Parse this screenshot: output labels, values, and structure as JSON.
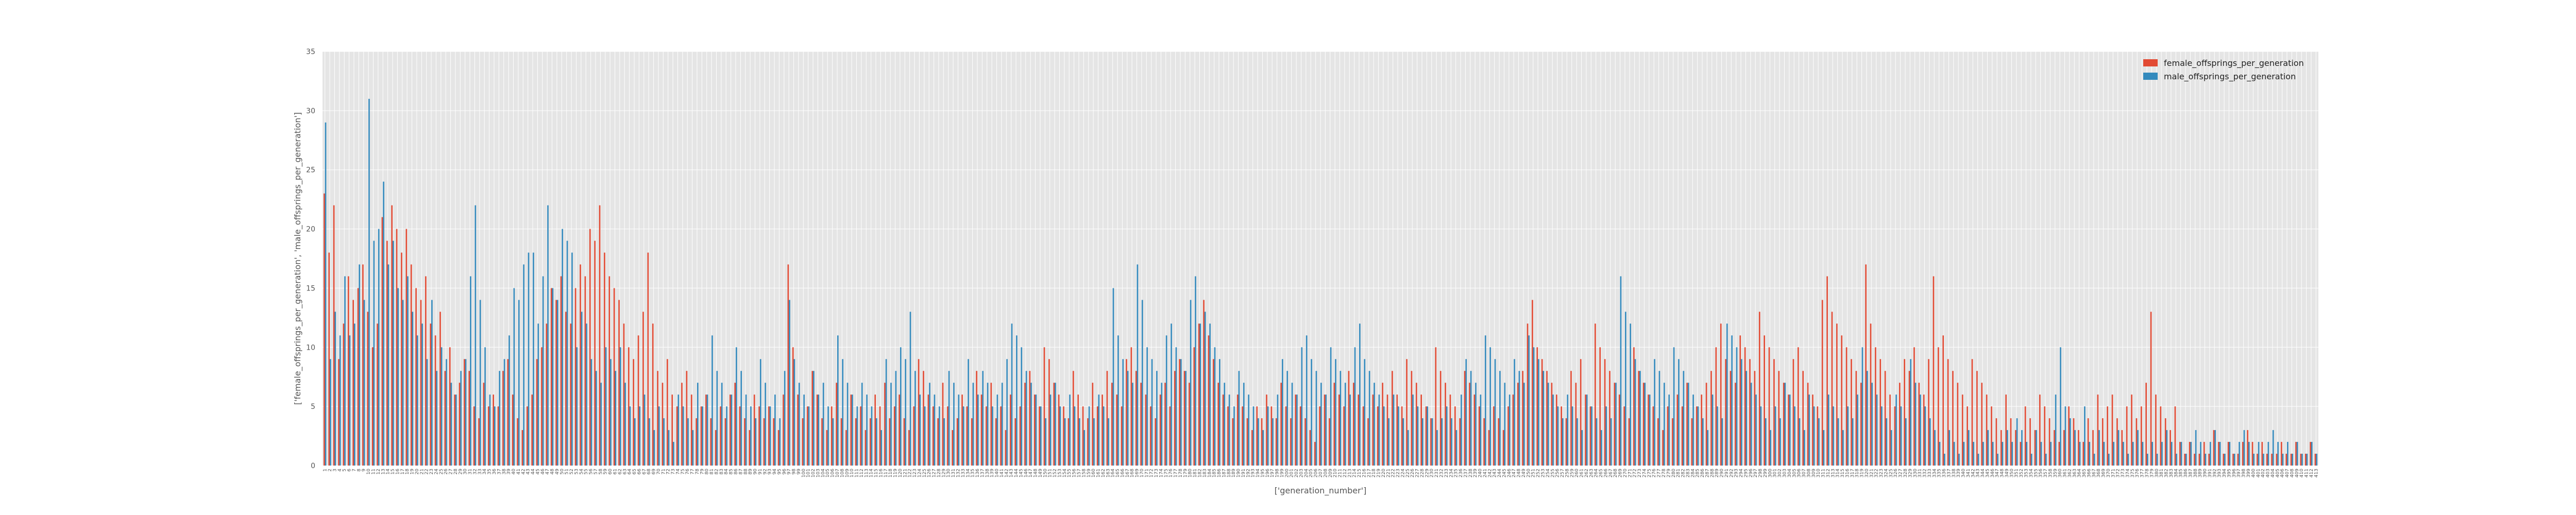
{
  "chart_data": {
    "type": "bar",
    "title": "",
    "xlabel": "['generation_number']",
    "ylabel": "['female_offsprings_per_generation', 'male_offsprings_per_generation']",
    "ylim": [
      0,
      35
    ],
    "yticks": [
      0,
      5,
      10,
      15,
      20,
      25,
      30,
      35
    ],
    "grid": true,
    "legend_position": "top-right",
    "colors": {
      "female_offsprings_per_generation": "#E24A33",
      "male_offsprings_per_generation": "#348ABD",
      "plot_background": "#E5E5E5",
      "grid": "#FFFFFF"
    },
    "x_start": 1,
    "x_end": 430,
    "series": [
      {
        "name": "female_offsprings_per_generation",
        "values": [
          23,
          18,
          22,
          9,
          12,
          16,
          14,
          15,
          17,
          13,
          10,
          12,
          21,
          19,
          22,
          20,
          18,
          20,
          17,
          15,
          14,
          16,
          12,
          11,
          13,
          8,
          10,
          6,
          7,
          9,
          8,
          5,
          4,
          7,
          5,
          6,
          5,
          8,
          9,
          6,
          4,
          3,
          5,
          6,
          9,
          10,
          12,
          15,
          14,
          16,
          13,
          12,
          15,
          17,
          16,
          20,
          19,
          22,
          18,
          16,
          15,
          14,
          12,
          10,
          9,
          11,
          13,
          18,
          12,
          8,
          7,
          9,
          6,
          5,
          7,
          8,
          6,
          4,
          5,
          6,
          4,
          3,
          5,
          4,
          6,
          7,
          5,
          4,
          3,
          6,
          5,
          4,
          5,
          4,
          3,
          6,
          17,
          10,
          6,
          4,
          5,
          8,
          6,
          4,
          3,
          5,
          7,
          4,
          3,
          6,
          4,
          5,
          3,
          4,
          6,
          5,
          7,
          4,
          5,
          6,
          4,
          3,
          5,
          9,
          8,
          6,
          5,
          4,
          7,
          5,
          3,
          4,
          6,
          5,
          4,
          8,
          6,
          5,
          7,
          4,
          5,
          3,
          6,
          4,
          5,
          7,
          8,
          6,
          5,
          10,
          9,
          7,
          6,
          5,
          4,
          8,
          6,
          5,
          4,
          7,
          5,
          6,
          8,
          7,
          6,
          5,
          9,
          10,
          8,
          7,
          6,
          5,
          4,
          6,
          7,
          5,
          8,
          9,
          8,
          7,
          10,
          12,
          14,
          11,
          9,
          7,
          6,
          5,
          4,
          6,
          5,
          4,
          3,
          5,
          4,
          6,
          5,
          4,
          7,
          5,
          4,
          6,
          5,
          4,
          3,
          2,
          5,
          6,
          4,
          7,
          6,
          5,
          8,
          7,
          6,
          5,
          4,
          6,
          5,
          7,
          6,
          8,
          6,
          5,
          9,
          8,
          7,
          6,
          5,
          4,
          10,
          8,
          7,
          6,
          5,
          4,
          8,
          7,
          6,
          5,
          4,
          3,
          5,
          4,
          3,
          5,
          6,
          7,
          8,
          12,
          14,
          10,
          9,
          8,
          7,
          6,
          5,
          4,
          8,
          7,
          9,
          6,
          5,
          12,
          10,
          9,
          8,
          7,
          6,
          5,
          4,
          10,
          8,
          7,
          6,
          5,
          4,
          3,
          5,
          4,
          6,
          5,
          7,
          4,
          5,
          6,
          7,
          8,
          10,
          12,
          9,
          8,
          7,
          11,
          10,
          9,
          8,
          13,
          11,
          10,
          9,
          8,
          7,
          6,
          9,
          10,
          8,
          7,
          6,
          5,
          14,
          16,
          13,
          12,
          11,
          10,
          9,
          8,
          7,
          17,
          12,
          10,
          9,
          8,
          6,
          5,
          7,
          9,
          8,
          10,
          7,
          6,
          9,
          16,
          10,
          11,
          9,
          8,
          7,
          6,
          5,
          9,
          8,
          7,
          6,
          5,
          4,
          3,
          6,
          4,
          3,
          2,
          5,
          4,
          3,
          6,
          5,
          4,
          3,
          2,
          3,
          5,
          4,
          3,
          2,
          4,
          3,
          6,
          4,
          5,
          6,
          4,
          3,
          5,
          6,
          4,
          5,
          7,
          13,
          6,
          5,
          4,
          3,
          5,
          2,
          1,
          2,
          1,
          1,
          2,
          1,
          3,
          2,
          1,
          2,
          1,
          1,
          2,
          3,
          2,
          1,
          2,
          1,
          1,
          1,
          2,
          1,
          1,
          2,
          1,
          1,
          2,
          1
        ]
      },
      {
        "name": "male_offsprings_per_generation",
        "values": [
          29,
          9,
          13,
          11,
          16,
          11,
          12,
          17,
          14,
          31,
          19,
          20,
          24,
          17,
          19,
          15,
          14,
          16,
          13,
          11,
          12,
          9,
          14,
          8,
          10,
          9,
          7,
          6,
          8,
          9,
          16,
          22,
          14,
          10,
          6,
          5,
          8,
          9,
          11,
          15,
          14,
          17,
          18,
          18,
          12,
          16,
          22,
          15,
          14,
          20,
          19,
          18,
          10,
          13,
          12,
          9,
          8,
          7,
          10,
          9,
          8,
          10,
          7,
          5,
          4,
          5,
          6,
          4,
          3,
          5,
          4,
          3,
          2,
          6,
          5,
          4,
          3,
          7,
          5,
          6,
          11,
          8,
          7,
          5,
          6,
          10,
          8,
          6,
          5,
          4,
          9,
          7,
          5,
          6,
          4,
          8,
          14,
          9,
          7,
          6,
          5,
          8,
          6,
          7,
          5,
          4,
          11,
          9,
          7,
          6,
          5,
          7,
          6,
          5,
          4,
          3,
          9,
          7,
          8,
          10,
          9,
          13,
          8,
          6,
          5,
          7,
          6,
          5,
          4,
          8,
          7,
          6,
          5,
          9,
          7,
          6,
          8,
          7,
          5,
          6,
          7,
          9,
          12,
          11,
          10,
          8,
          7,
          6,
          5,
          4,
          6,
          7,
          5,
          4,
          6,
          5,
          4,
          3,
          5,
          4,
          6,
          5,
          4,
          15,
          11,
          9,
          8,
          7,
          17,
          14,
          10,
          9,
          8,
          7,
          11,
          12,
          10,
          9,
          8,
          14,
          16,
          12,
          13,
          12,
          10,
          9,
          7,
          6,
          5,
          8,
          7,
          6,
          5,
          4,
          3,
          5,
          4,
          6,
          9,
          8,
          7,
          6,
          10,
          11,
          9,
          8,
          7,
          6,
          10,
          9,
          8,
          7,
          6,
          10,
          12,
          9,
          8,
          7,
          6,
          5,
          4,
          6,
          5,
          4,
          3,
          6,
          5,
          4,
          5,
          4,
          3,
          4,
          5,
          4,
          3,
          6,
          9,
          8,
          7,
          6,
          11,
          10,
          9,
          8,
          7,
          6,
          9,
          8,
          7,
          11,
          10,
          9,
          8,
          7,
          6,
          5,
          4,
          6,
          5,
          4,
          3,
          6,
          5,
          4,
          3,
          5,
          4,
          7,
          16,
          13,
          12,
          9,
          8,
          7,
          6,
          9,
          8,
          7,
          6,
          10,
          9,
          8,
          7,
          6,
          5,
          4,
          3,
          6,
          5,
          4,
          12,
          11,
          10,
          9,
          8,
          7,
          6,
          5,
          4,
          3,
          5,
          4,
          7,
          6,
          5,
          4,
          3,
          6,
          5,
          4,
          3,
          6,
          5,
          4,
          3,
          5,
          4,
          6,
          10,
          8,
          7,
          6,
          5,
          4,
          3,
          6,
          5,
          4,
          9,
          7,
          6,
          5,
          4,
          3,
          2,
          1,
          3,
          2,
          1,
          2,
          3,
          2,
          1,
          2,
          3,
          2,
          1,
          2,
          3,
          2,
          4,
          3,
          2,
          1,
          3,
          2,
          1,
          2,
          6,
          10,
          5,
          4,
          3,
          2,
          5,
          2,
          1,
          3,
          2,
          1,
          2,
          3,
          2,
          1,
          2,
          3,
          2,
          1,
          2,
          1,
          2,
          3,
          2,
          1,
          2,
          1,
          2,
          3,
          2,
          1,
          2,
          3,
          2,
          1,
          2,
          1,
          2,
          3,
          2,
          1,
          2,
          1,
          2,
          3,
          2,
          1,
          2,
          1,
          2,
          1,
          1,
          2,
          1,
          3,
          2,
          1,
          2,
          1,
          1,
          2,
          1,
          1,
          2,
          3,
          2,
          1,
          2,
          1,
          1,
          2,
          3,
          1,
          1,
          2,
          1,
          1
        ]
      }
    ]
  }
}
